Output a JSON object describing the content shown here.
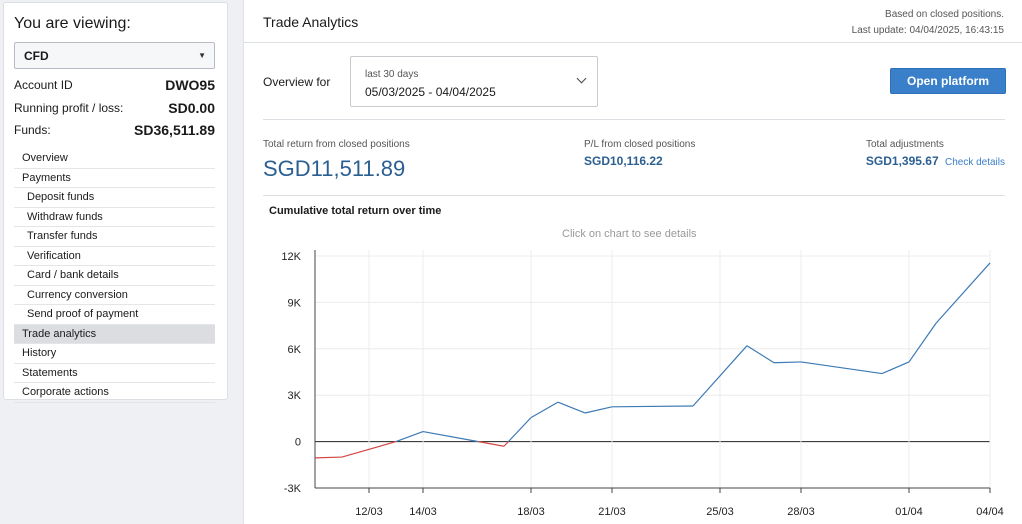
{
  "sidebar": {
    "title": "You are viewing:",
    "account_type": "CFD",
    "account_id_label": "Account ID",
    "account_id": "DWO95",
    "running_label": "Running profit / loss:",
    "running_value": "SD0.00",
    "funds_label": "Funds:",
    "funds_value": "SD36,511.89",
    "nav": [
      {
        "label": "Overview",
        "sub": false
      },
      {
        "label": "Payments",
        "sub": false
      },
      {
        "label": "Deposit funds",
        "sub": true
      },
      {
        "label": "Withdraw funds",
        "sub": true
      },
      {
        "label": "Transfer funds",
        "sub": true
      },
      {
        "label": "Verification",
        "sub": true
      },
      {
        "label": "Card / bank details",
        "sub": true
      },
      {
        "label": "Currency conversion",
        "sub": true
      },
      {
        "label": "Send proof of payment",
        "sub": true
      },
      {
        "label": "Trade analytics",
        "sub": false,
        "active": true
      },
      {
        "label": "History",
        "sub": false
      },
      {
        "label": "Statements",
        "sub": false
      },
      {
        "label": "Corporate actions",
        "sub": false
      }
    ]
  },
  "header": {
    "title": "Trade Analytics",
    "based_on": "Based on closed positions.",
    "last_update": "Last update: 04/04/2025, 16:43:15"
  },
  "controls": {
    "overview_label": "Overview for",
    "period_label": "last 30 days",
    "date_range": "05/03/2025 - 04/04/2025",
    "open_platform": "Open platform"
  },
  "stats": {
    "total_return_label": "Total return from closed positions",
    "total_return_value": "SGD11,511.89",
    "pl_label": "P/L from closed positions",
    "pl_value": "SGD10,116.22",
    "adjustments_label": "Total adjustments",
    "adjustments_value": "SGD1,395.67",
    "check_details": "Check details"
  },
  "chart_title": "Cumulative total return over time",
  "chart_hint": "Click on chart to see details",
  "colors": {
    "positive_line": "#3d7ab5",
    "negative_line": "#d64545",
    "accent": "#3a7fc9",
    "value_text": "#2b5f92"
  },
  "chart_data": {
    "type": "line",
    "title": "Cumulative total return over time",
    "x_tick_labels": [
      "12/03",
      "14/03",
      "18/03",
      "21/03",
      "25/03",
      "28/03",
      "01/04",
      "04/04"
    ],
    "y_tick_labels": [
      "12K",
      "9K",
      "6K",
      "3K",
      "0",
      "-3K"
    ],
    "ylim": [
      -3000,
      12000
    ],
    "grid": true,
    "points": [
      {
        "x": "10/03",
        "y": -1050
      },
      {
        "x": "11/03",
        "y": -1000
      },
      {
        "x": "13/03",
        "y": 0
      },
      {
        "x": "14/03",
        "y": 650
      },
      {
        "x": "17/03",
        "y": -300
      },
      {
        "x": "18/03",
        "y": 1550
      },
      {
        "x": "19/03",
        "y": 2550
      },
      {
        "x": "20/03",
        "y": 1850
      },
      {
        "x": "21/03",
        "y": 2250
      },
      {
        "x": "24/03",
        "y": 2300
      },
      {
        "x": "26/03",
        "y": 6200
      },
      {
        "x": "27/03",
        "y": 5100
      },
      {
        "x": "28/03",
        "y": 5150
      },
      {
        "x": "31/03",
        "y": 4400
      },
      {
        "x": "01/04",
        "y": 5150
      },
      {
        "x": "02/04",
        "y": 7650
      },
      {
        "x": "04/04",
        "y": 11550
      }
    ]
  }
}
